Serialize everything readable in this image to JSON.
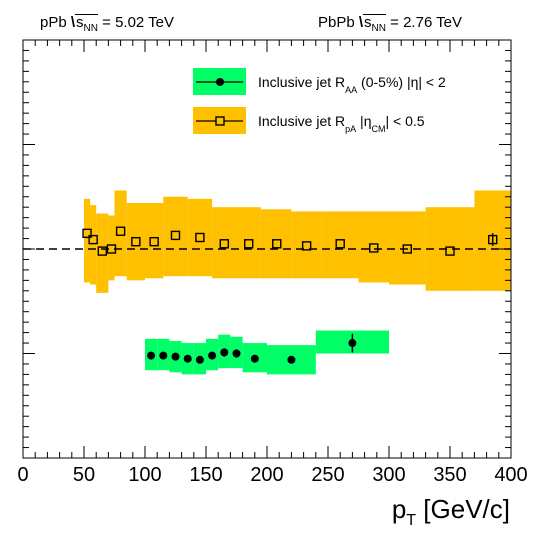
{
  "header": {
    "left_prefix": "pPb ",
    "left_sqrt": "s",
    "left_sub": "NN",
    "left_value": " = 5.02 TeV",
    "right_prefix": "PbPb ",
    "right_sqrt": "s",
    "right_sub": "NN",
    "right_value": " = 2.76 TeV"
  },
  "chart_data": {
    "type": "scatter",
    "xlabel": "p",
    "xlabel_sub": "T",
    "xlabel_unit": " [GeV/c]",
    "xlim": [
      0,
      400
    ],
    "ylim": [
      0,
      2.0
    ],
    "x_ticks": [
      "0",
      "50",
      "100",
      "150",
      "200",
      "250",
      "300",
      "350",
      "400"
    ],
    "y_tick_labels_shown": false,
    "reference_line": 1.0,
    "legend": {
      "position": "top-right",
      "entries": [
        {
          "series": "RAA",
          "text": "Inclusive jet  R",
          "sub": "AA",
          "tail": "  (0-5%)  |η| < 2"
        },
        {
          "series": "RpA",
          "text": "Inclusive jet  R",
          "sub": "pA",
          "tail": "  |η",
          "sub2": "CM",
          "tail2": "| < 0.5"
        }
      ]
    },
    "series": [
      {
        "id": "RpA",
        "marker": "open-square",
        "band_color": "#ffc000",
        "points": [
          {
            "x": 52.5,
            "y": 1.075,
            "xlo": 50,
            "xhi": 55,
            "ylo": 0.84,
            "yhi": 1.24
          },
          {
            "x": 57.5,
            "y": 1.045,
            "xlo": 55,
            "xhi": 60,
            "ylo": 0.83,
            "yhi": 1.21
          },
          {
            "x": 65,
            "y": 0.99,
            "xlo": 60,
            "xhi": 70,
            "ylo": 0.79,
            "yhi": 1.17
          },
          {
            "x": 72.5,
            "y": 1.0,
            "xlo": 70,
            "xhi": 75,
            "ylo": 0.85,
            "yhi": 1.16
          },
          {
            "x": 80,
            "y": 1.085,
            "xlo": 75,
            "xhi": 85,
            "ylo": 0.87,
            "yhi": 1.28
          },
          {
            "x": 92.5,
            "y": 1.035,
            "xlo": 85,
            "xhi": 100,
            "ylo": 0.85,
            "yhi": 1.22
          },
          {
            "x": 107.5,
            "y": 1.035,
            "xlo": 100,
            "xhi": 115,
            "ylo": 0.86,
            "yhi": 1.22
          },
          {
            "x": 125,
            "y": 1.065,
            "xlo": 115,
            "xhi": 135,
            "ylo": 0.87,
            "yhi": 1.25
          },
          {
            "x": 145,
            "y": 1.055,
            "xlo": 135,
            "xhi": 155,
            "ylo": 0.87,
            "yhi": 1.24
          },
          {
            "x": 165,
            "y": 1.025,
            "xlo": 155,
            "xhi": 175,
            "ylo": 0.86,
            "yhi": 1.2
          },
          {
            "x": 185,
            "y": 1.025,
            "xlo": 175,
            "xhi": 195,
            "ylo": 0.86,
            "yhi": 1.2
          },
          {
            "x": 208,
            "y": 1.025,
            "xlo": 195,
            "xhi": 220,
            "ylo": 0.86,
            "yhi": 1.19
          },
          {
            "x": 232.5,
            "y": 1.015,
            "xlo": 220,
            "xhi": 245,
            "ylo": 0.86,
            "yhi": 1.18
          },
          {
            "x": 260,
            "y": 1.025,
            "xlo": 245,
            "xhi": 275,
            "ylo": 0.86,
            "yhi": 1.18
          },
          {
            "x": 287.5,
            "y": 1.005,
            "xlo": 275,
            "xhi": 300,
            "ylo": 0.84,
            "yhi": 1.18
          },
          {
            "x": 315,
            "y": 1.0,
            "xlo": 300,
            "xhi": 330,
            "ylo": 0.83,
            "yhi": 1.18
          },
          {
            "x": 350,
            "y": 0.99,
            "xlo": 330,
            "xhi": 370,
            "ylo": 0.8,
            "yhi": 1.2
          },
          {
            "x": 385,
            "y": 1.045,
            "xlo": 370,
            "xhi": 400,
            "ylo": 0.8,
            "yhi": 1.28,
            "err": 0.03
          }
        ]
      },
      {
        "id": "RAA",
        "marker": "filled-circle",
        "band_color": "#00ff66",
        "points": [
          {
            "x": 105,
            "y": 0.49,
            "xlo": 100,
            "xhi": 110,
            "ylo": 0.42,
            "yhi": 0.57
          },
          {
            "x": 115,
            "y": 0.49,
            "xlo": 110,
            "xhi": 120,
            "ylo": 0.42,
            "yhi": 0.57
          },
          {
            "x": 125,
            "y": 0.485,
            "xlo": 120,
            "xhi": 130,
            "ylo": 0.41,
            "yhi": 0.56
          },
          {
            "x": 135,
            "y": 0.475,
            "xlo": 130,
            "xhi": 140,
            "ylo": 0.4,
            "yhi": 0.55
          },
          {
            "x": 145,
            "y": 0.47,
            "xlo": 140,
            "xhi": 150,
            "ylo": 0.4,
            "yhi": 0.55
          },
          {
            "x": 155,
            "y": 0.49,
            "xlo": 150,
            "xhi": 160,
            "ylo": 0.42,
            "yhi": 0.57
          },
          {
            "x": 165,
            "y": 0.505,
            "xlo": 160,
            "xhi": 170,
            "ylo": 0.43,
            "yhi": 0.59,
            "err": 0.02
          },
          {
            "x": 175,
            "y": 0.5,
            "xlo": 170,
            "xhi": 180,
            "ylo": 0.43,
            "yhi": 0.58,
            "err": 0.02
          },
          {
            "x": 190,
            "y": 0.475,
            "xlo": 180,
            "xhi": 200,
            "ylo": 0.41,
            "yhi": 0.55
          },
          {
            "x": 220,
            "y": 0.47,
            "xlo": 200,
            "xhi": 240,
            "ylo": 0.4,
            "yhi": 0.54
          },
          {
            "x": 270,
            "y": 0.55,
            "xlo": 240,
            "xhi": 300,
            "ylo": 0.5,
            "yhi": 0.61,
            "err": 0.045
          }
        ]
      }
    ]
  }
}
